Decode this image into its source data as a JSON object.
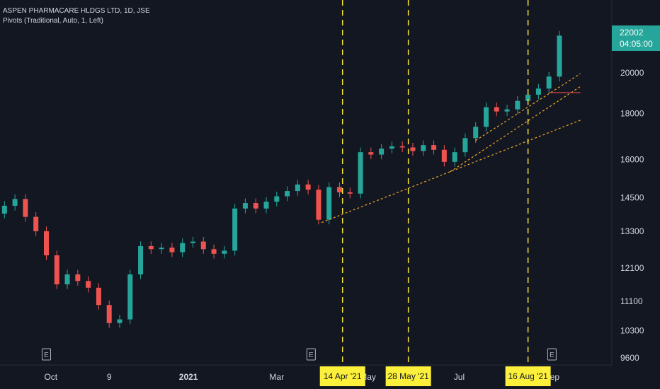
{
  "header": {
    "symbol_line": "ASPEN PHARMACARE HLDGS LTD, 1D, JSE",
    "indicator_line": "Pivots (Traditional, Auto, 1, Left)"
  },
  "price_badge": {
    "price": "22002",
    "countdown": "04:05:00",
    "color": "#26a69a"
  },
  "colors": {
    "background": "#131722",
    "up": "#26a69a",
    "down": "#ef5350",
    "trendline": "#f5a623",
    "vline": "#f6e23a",
    "pivot": "#e5484d",
    "axis_text": "#d1d4dc"
  },
  "chart_data": {
    "type": "candlestick",
    "title": "ASPEN PHARMACARE HLDGS LTD, 1D, JSE",
    "y_axis": {
      "scale": "log",
      "ticks": [
        22002,
        20000,
        18000,
        16000,
        14500,
        13300,
        12100,
        11100,
        10300,
        9600
      ],
      "range": [
        9600,
        23000
      ]
    },
    "x_axis": {
      "tick_labels": [
        "Oct",
        "9",
        "2021",
        "Mar",
        "May",
        "Jul",
        "Sep"
      ],
      "tick_label_bold": [
        false,
        false,
        true,
        false,
        false,
        false,
        false
      ]
    },
    "series": [
      {
        "date": "2020-08-31",
        "close": 14200
      },
      {
        "date": "2020-09-07",
        "close": 14450
      },
      {
        "date": "2020-09-14",
        "close": 13800
      },
      {
        "date": "2020-09-21",
        "close": 13300
      },
      {
        "date": "2020-09-28",
        "close": 12500
      },
      {
        "date": "2020-10-05",
        "close": 11600
      },
      {
        "date": "2020-10-12",
        "close": 11900
      },
      {
        "date": "2020-10-19",
        "close": 11700
      },
      {
        "date": "2020-10-26",
        "close": 11500
      },
      {
        "date": "2020-11-02",
        "close": 11000
      },
      {
        "date": "2020-11-09",
        "close": 10500
      },
      {
        "date": "2020-11-16",
        "close": 10600
      },
      {
        "date": "2020-11-23",
        "close": 11900
      },
      {
        "date": "2020-11-30",
        "close": 12800
      },
      {
        "date": "2020-12-07",
        "close": 12700
      },
      {
        "date": "2020-12-14",
        "close": 12750
      },
      {
        "date": "2020-12-21",
        "close": 12600
      },
      {
        "date": "2020-12-28",
        "close": 12900
      },
      {
        "date": "2021-01-04",
        "close": 12950
      },
      {
        "date": "2021-01-11",
        "close": 12700
      },
      {
        "date": "2021-01-18",
        "close": 12550
      },
      {
        "date": "2021-01-25",
        "close": 12650
      },
      {
        "date": "2021-02-01",
        "close": 14100
      },
      {
        "date": "2021-02-08",
        "close": 14300
      },
      {
        "date": "2021-02-15",
        "close": 14100
      },
      {
        "date": "2021-02-22",
        "close": 14350
      },
      {
        "date": "2021-03-01",
        "close": 14550
      },
      {
        "date": "2021-03-08",
        "close": 14750
      },
      {
        "date": "2021-03-15",
        "close": 15000
      },
      {
        "date": "2021-03-22",
        "close": 14800
      },
      {
        "date": "2021-03-29",
        "close": 13700
      },
      {
        "date": "2021-04-05",
        "close": 14900
      },
      {
        "date": "2021-04-12",
        "close": 14700
      },
      {
        "date": "2021-04-19",
        "close": 14650
      },
      {
        "date": "2021-04-26",
        "close": 16300
      },
      {
        "date": "2021-05-03",
        "close": 16200
      },
      {
        "date": "2021-05-10",
        "close": 16450
      },
      {
        "date": "2021-05-17",
        "close": 16550
      },
      {
        "date": "2021-05-24",
        "close": 16500
      },
      {
        "date": "2021-05-31",
        "close": 16350
      },
      {
        "date": "2021-06-07",
        "close": 16600
      },
      {
        "date": "2021-06-14",
        "close": 16400
      },
      {
        "date": "2021-06-21",
        "close": 15900
      },
      {
        "date": "2021-06-28",
        "close": 16300
      },
      {
        "date": "2021-07-05",
        "close": 16900
      },
      {
        "date": "2021-07-12",
        "close": 17400
      },
      {
        "date": "2021-07-19",
        "close": 18300
      },
      {
        "date": "2021-07-26",
        "close": 18100
      },
      {
        "date": "2021-08-02",
        "close": 18200
      },
      {
        "date": "2021-08-09",
        "close": 18600
      },
      {
        "date": "2021-08-16",
        "close": 18900
      },
      {
        "date": "2021-08-23",
        "close": 19200
      },
      {
        "date": "2021-08-30",
        "close": 19800
      },
      {
        "date": "2021-09-06",
        "close": 22002
      }
    ],
    "trendlines": [
      {
        "from": [
          "2021-03-31",
          13600
        ],
        "to": [
          "2021-09-20",
          17700
        ],
        "style": "dashed"
      },
      {
        "from": [
          "2021-06-25",
          15500
        ],
        "to": [
          "2021-09-20",
          19300
        ],
        "style": "dashed"
      },
      {
        "from": [
          "2021-07-12",
          16800
        ],
        "to": [
          "2021-09-20",
          19950
        ],
        "style": "dashed"
      }
    ],
    "pivot_lines": [
      {
        "from": "2021-08-30",
        "to": "2021-09-20",
        "value": 19000
      }
    ],
    "vertical_markers": [
      {
        "date": "2021-04-14",
        "label": "14 Apr '21"
      },
      {
        "date": "2021-05-28",
        "label": "28 May '21"
      },
      {
        "date": "2021-08-16",
        "label": "16 Aug '21"
      }
    ],
    "event_markers": [
      {
        "date": "2020-09-28",
        "label": "E"
      },
      {
        "date": "2021-03-24",
        "label": "E"
      },
      {
        "date": "2021-09-01",
        "label": "E"
      }
    ]
  }
}
